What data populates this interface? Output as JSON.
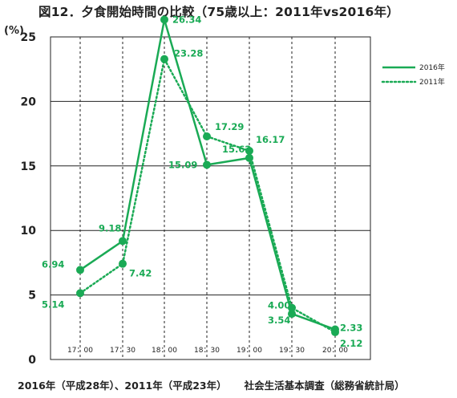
{
  "title": "図12．夕食開始時間の比較（75歳以上：2011年vs2016年）",
  "source_left": "2016年（平成28年）、2011年（平成23年）",
  "source_right": "社会生活基本調査（総務省統計局）",
  "colors": {
    "series": "#1aaa55",
    "axis": "#222222",
    "grid": "#222222"
  },
  "chart_data": {
    "type": "line",
    "title": "図12．夕食開始時間の比較（75歳以上：2011年vs2016年）",
    "ylabel": "(%)",
    "xlabel": "",
    "ylim": [
      0,
      25
    ],
    "yticks": [
      0,
      5,
      10,
      15,
      20,
      25
    ],
    "grid": true,
    "legend_position": "right",
    "x": [
      "17：00",
      "17：30",
      "18：00",
      "18：30",
      "19：00",
      "19：30",
      "20：00"
    ],
    "series": [
      {
        "name": "2016年",
        "style": "solid",
        "values": [
          6.94,
          9.18,
          26.34,
          15.09,
          15.62,
          3.54,
          2.33
        ]
      },
      {
        "name": "2011年",
        "style": "dotted",
        "values": [
          5.14,
          7.42,
          23.28,
          17.29,
          16.17,
          4.0,
          2.12
        ]
      }
    ]
  }
}
